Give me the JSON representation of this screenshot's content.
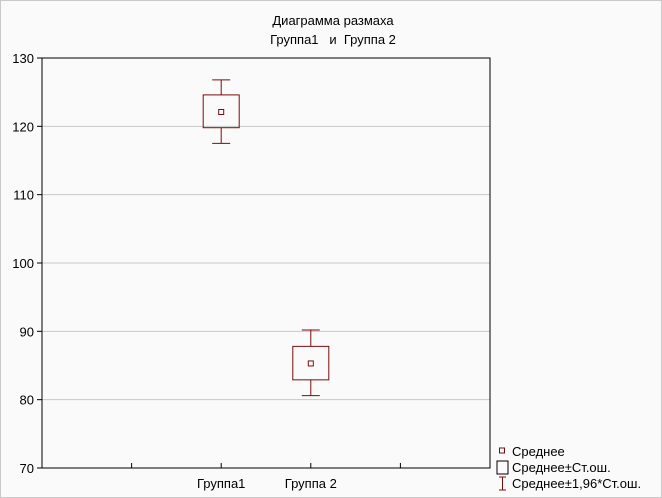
{
  "chart_data": {
    "type": "box",
    "title": "Диаграмма размаха",
    "subtitle": "Группа1   и  Группа 2",
    "xlabel": "",
    "ylabel": "",
    "categories": [
      "Группа1",
      "Группа 2"
    ],
    "ylim": [
      70,
      130
    ],
    "yticks": [
      70,
      80,
      90,
      100,
      110,
      120,
      130
    ],
    "grid": "horizontal",
    "legend_position": "bottom-right",
    "series": [
      {
        "category": "Группа1",
        "mean": 122.1,
        "se_low": 119.8,
        "se_high": 124.6,
        "ci_low": 117.5,
        "ci_high": 126.8
      },
      {
        "category": "Группа 2",
        "mean": 85.3,
        "se_low": 82.9,
        "se_high": 87.8,
        "ci_low": 80.6,
        "ci_high": 90.2
      }
    ],
    "legend": [
      {
        "symbol": "small-square-marker",
        "label": "Среднее"
      },
      {
        "symbol": "box",
        "label": "Среднее±Ст.ош."
      },
      {
        "symbol": "whisker",
        "label": "Среднее±1,96*Ст.ош."
      }
    ],
    "colors": {
      "series": "#7a0c0c",
      "grid": "#c8c8c8",
      "frame": "#000000"
    }
  }
}
